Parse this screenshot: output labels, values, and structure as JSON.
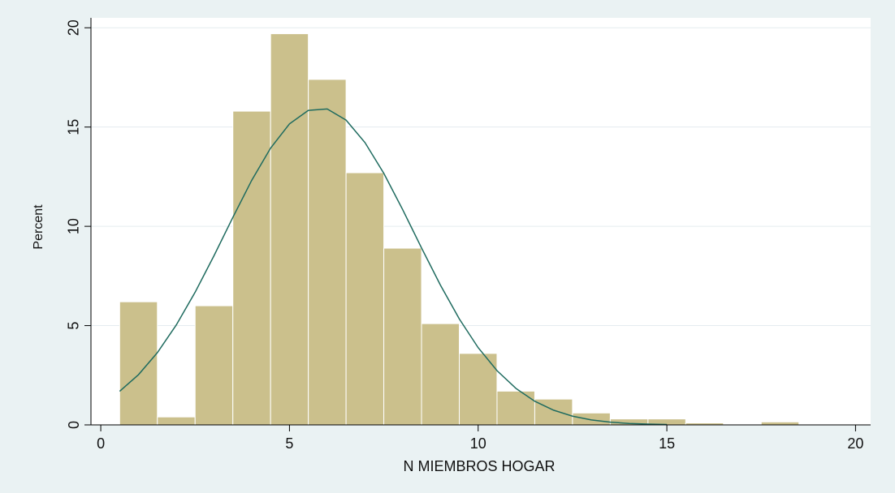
{
  "chart_data": {
    "type": "histogram",
    "xlabel": "N MIEMBROS HOGAR",
    "ylabel": "Percent",
    "bins": [
      0.5,
      1.5,
      2.5,
      3.5,
      4.5,
      5.5,
      6.5,
      7.5,
      8.5,
      9.5,
      10.5,
      11.5,
      12.5,
      13.5,
      14.5,
      15.5,
      16.5,
      17.5,
      18.5
    ],
    "values": [
      6.2,
      0.4,
      6.0,
      15.8,
      19.7,
      17.4,
      12.7,
      8.9,
      5.1,
      3.6,
      1.7,
      1.3,
      0.6,
      0.3,
      0.3,
      0.1,
      0,
      0.15
    ],
    "color": "#cbc08c",
    "curve": {
      "color": "#1f6b5f",
      "x": [
        0.5,
        1,
        1.5,
        2,
        2.5,
        3,
        3.5,
        4,
        4.5,
        5,
        5.5,
        6,
        6.5,
        7,
        7.5,
        8,
        8.5,
        9,
        9.5,
        10,
        10.5,
        11,
        11.5,
        12,
        12.5,
        13,
        13.5,
        14,
        14.5,
        15
      ],
      "values": [
        1.69,
        2.53,
        3.64,
        5.03,
        6.68,
        8.52,
        10.45,
        12.32,
        13.94,
        15.16,
        15.84,
        15.91,
        15.35,
        14.22,
        12.67,
        10.84,
        8.91,
        7.04,
        5.34,
        3.89,
        2.73,
        1.84,
        1.19,
        0.74,
        0.44,
        0.25,
        0.14,
        0.07,
        0.04,
        0.02
      ]
    },
    "xlim": [
      -0.26,
      20.4
    ],
    "xticks": [
      0,
      5,
      10,
      15,
      20
    ],
    "ylim": [
      0,
      20.5
    ],
    "yticks": [
      0,
      5,
      10,
      15,
      20
    ],
    "grid": true
  }
}
